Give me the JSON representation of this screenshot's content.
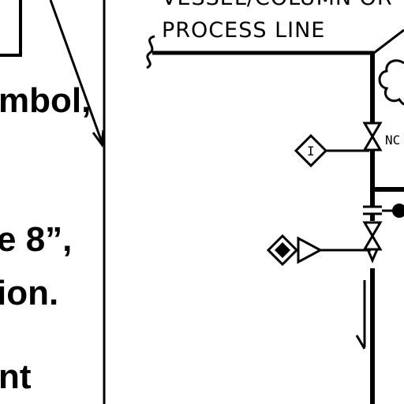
{
  "slide": {
    "lines": [
      "mbol,",
      "e 8”,",
      "ion.",
      "nt"
    ]
  },
  "diagram": {
    "header_label": "VESSEL/COLUMN OR",
    "process_line_label": "PROCESS LINE",
    "valve_tag": "NC",
    "instrument_tag": "I"
  }
}
